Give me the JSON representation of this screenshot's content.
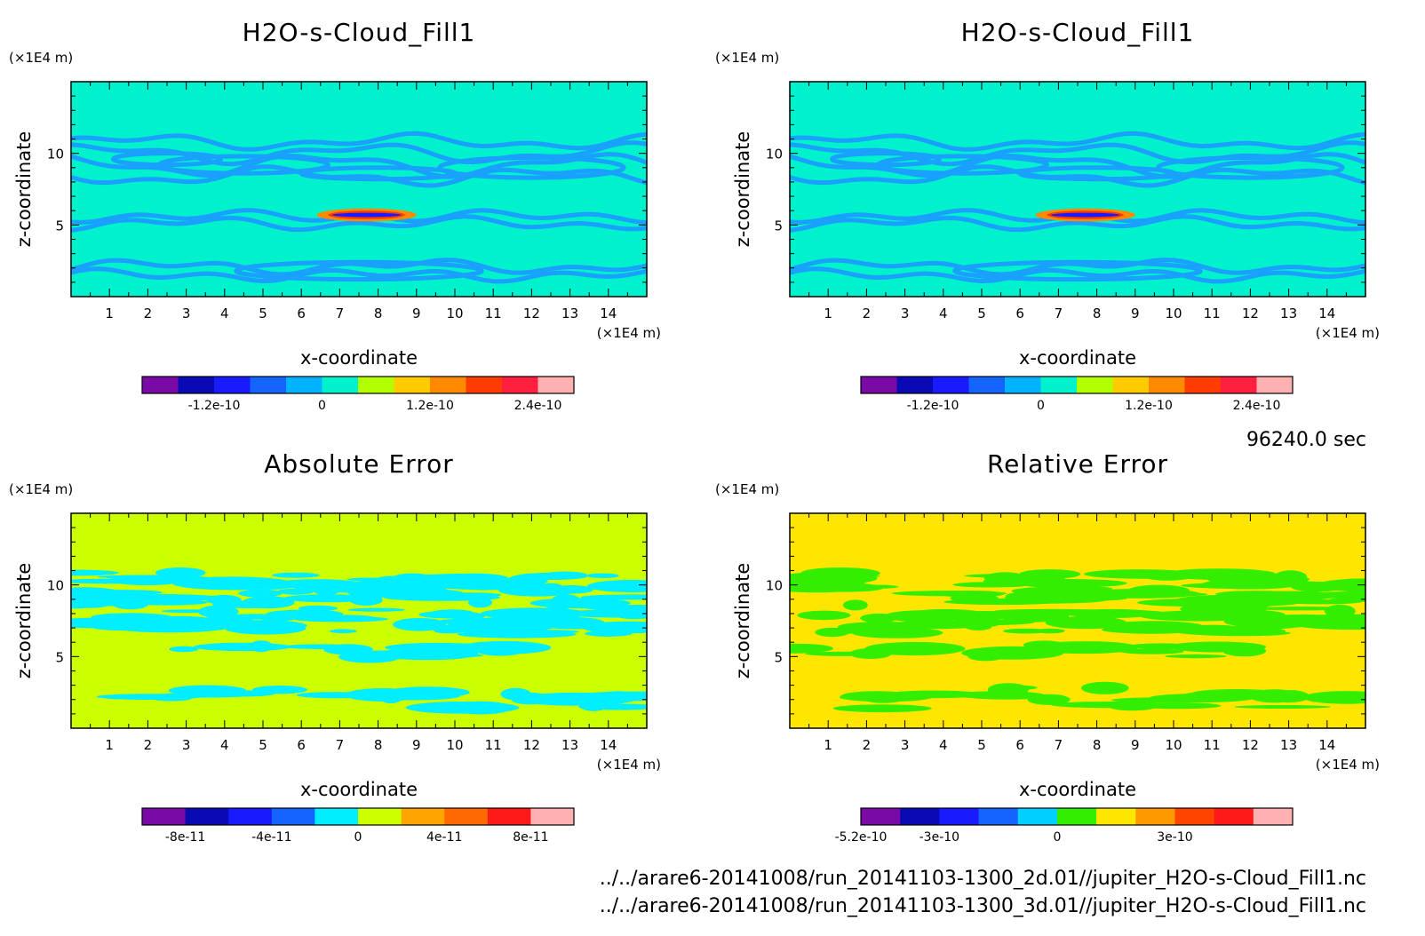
{
  "time_label": "96240.0 sec",
  "file_paths": [
    "../../arare6-20141008/run_20141103-1300_2d.01//jupiter_H2O-s-Cloud_Fill1.nc",
    "../../arare6-20141008/run_20141103-1300_3d.01//jupiter_H2O-s-Cloud_Fill1.nc"
  ],
  "chart_data": [
    {
      "type": "heatmap",
      "title": "H2O-s-Cloud_Fill1",
      "xlabel": "x-coordinate",
      "ylabel": "z-coordinate",
      "x_unit": "(×1E4 m)",
      "y_unit": "(×1E4 m)",
      "x_ticks": [
        1,
        2,
        3,
        4,
        5,
        6,
        7,
        8,
        9,
        10,
        11,
        12,
        13,
        14
      ],
      "y_ticks": [
        5,
        10
      ],
      "xlim": [
        0,
        15
      ],
      "ylim": [
        0,
        15
      ],
      "background_color": "#00f2cc",
      "pattern_color": "#1aa0ff",
      "pattern": "cloud-rings",
      "colorbar": {
        "colors": [
          "#7a0aa5",
          "#0a0ab4",
          "#1a1aff",
          "#1464ff",
          "#00b2ff",
          "#00f2cc",
          "#b2ff00",
          "#ffcc00",
          "#ff8a00",
          "#ff3c00",
          "#ff2040",
          "#ffb0b0"
        ],
        "tick_labels": [
          "-1.2e-10",
          "0",
          "1.2e-10",
          "2.4e-10"
        ],
        "tick_positions": [
          2,
          5,
          8,
          11
        ]
      }
    },
    {
      "type": "heatmap",
      "title": "H2O-s-Cloud_Fill1",
      "xlabel": "x-coordinate",
      "ylabel": "z-coordinate",
      "x_unit": "(×1E4 m)",
      "y_unit": "(×1E4 m)",
      "x_ticks": [
        1,
        2,
        3,
        4,
        5,
        6,
        7,
        8,
        9,
        10,
        11,
        12,
        13,
        14
      ],
      "y_ticks": [
        5,
        10
      ],
      "xlim": [
        0,
        15
      ],
      "ylim": [
        0,
        15
      ],
      "background_color": "#00f2cc",
      "pattern_color": "#1aa0ff",
      "pattern": "cloud-rings",
      "colorbar": {
        "colors": [
          "#7a0aa5",
          "#0a0ab4",
          "#1a1aff",
          "#1464ff",
          "#00b2ff",
          "#00f2cc",
          "#b2ff00",
          "#ffcc00",
          "#ff8a00",
          "#ff3c00",
          "#ff2040",
          "#ffb0b0"
        ],
        "tick_labels": [
          "-1.2e-10",
          "0",
          "1.2e-10",
          "2.4e-10"
        ],
        "tick_positions": [
          2,
          5,
          8,
          11
        ]
      }
    },
    {
      "type": "heatmap",
      "title": "Absolute Error",
      "xlabel": "x-coordinate",
      "ylabel": "z-coordinate",
      "x_unit": "(×1E4 m)",
      "y_unit": "(×1E4 m)",
      "x_ticks": [
        1,
        2,
        3,
        4,
        5,
        6,
        7,
        8,
        9,
        10,
        11,
        12,
        13,
        14
      ],
      "y_ticks": [
        5,
        10
      ],
      "xlim": [
        0,
        15
      ],
      "ylim": [
        0,
        15
      ],
      "background_color": "#ccff00",
      "pattern_color": "#00eeff",
      "pattern": "error-blobs",
      "colorbar": {
        "colors": [
          "#7a0aa5",
          "#0a0ab4",
          "#1a1aff",
          "#1464ff",
          "#00eeff",
          "#ccff00",
          "#ffa500",
          "#ff6a00",
          "#ff1a1a",
          "#ffb0b0"
        ],
        "tick_labels": [
          "-8e-11",
          "-4e-11",
          "0",
          "4e-11",
          "8e-11"
        ],
        "tick_positions": [
          1,
          3,
          5,
          7,
          9
        ]
      }
    },
    {
      "type": "heatmap",
      "title": "Relative Error",
      "xlabel": "x-coordinate",
      "ylabel": "z-coordinate",
      "x_unit": "(×1E4 m)",
      "y_unit": "(×1E4 m)",
      "x_ticks": [
        1,
        2,
        3,
        4,
        5,
        6,
        7,
        8,
        9,
        10,
        11,
        12,
        13,
        14
      ],
      "y_ticks": [
        5,
        10
      ],
      "xlim": [
        0,
        15
      ],
      "ylim": [
        0,
        15
      ],
      "background_color": "#ffe600",
      "pattern_color": "#33ee00",
      "pattern": "error-blobs",
      "colorbar": {
        "colors": [
          "#7a0aa5",
          "#0a0ab4",
          "#1a1aff",
          "#1464ff",
          "#00d0ff",
          "#33ee00",
          "#ffe600",
          "#ff9900",
          "#ff4400",
          "#ff1a1a",
          "#ffb0b0"
        ],
        "tick_labels": [
          "-5.2e-10",
          "-3e-10",
          "0",
          "3e-10"
        ],
        "tick_positions": [
          0,
          2,
          5,
          8
        ]
      }
    }
  ]
}
